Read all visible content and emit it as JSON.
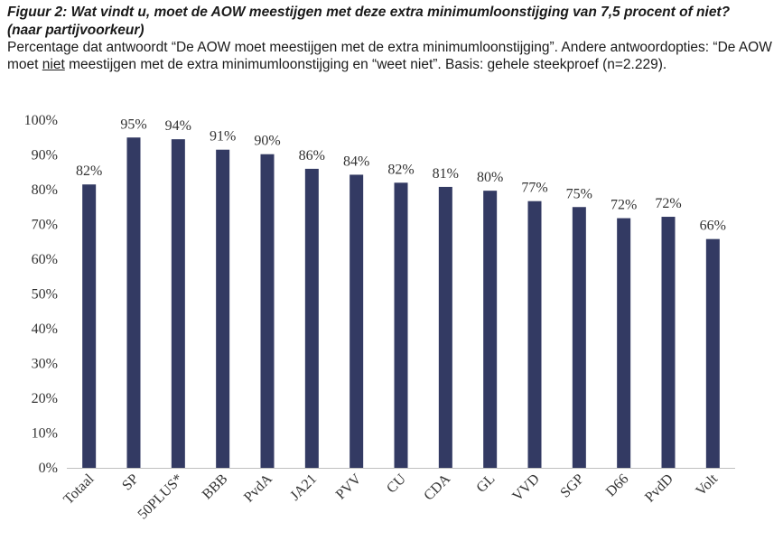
{
  "header": {
    "title_line1": "Figuur 2: Wat vindt u, moet de AOW meestijgen met deze extra minimumloonstijging van 7,5 procent of niet?",
    "title_line2": "(naar partijvoorkeur)",
    "desc_part1": "Percentage dat antwoordt “De AOW moet meestijgen met de extra minimumloonstijging”. Andere antwoordopties: “De AOW moet ",
    "desc_underlined": "niet",
    "desc_part2": " meestijgen met de extra minimumloonstijging en “weet niet”. Basis: gehele steekproef (n=2.229)."
  },
  "chart_data": {
    "type": "bar",
    "categories": [
      "Totaal",
      "SP",
      "50PLUS*",
      "BBB",
      "PvdA",
      "JA21",
      "PVV",
      "CU",
      "CDA",
      "GL",
      "VVD",
      "SGP",
      "D66",
      "PvdD",
      "Volt"
    ],
    "values": [
      82,
      95,
      94,
      91,
      90,
      86,
      84,
      82,
      81,
      80,
      77,
      75,
      72,
      72,
      66
    ],
    "bar_values": [
      81.5,
      95,
      94.5,
      91.5,
      90.2,
      86,
      84.3,
      82,
      80.8,
      79.7,
      76.7,
      75,
      71.8,
      72.2,
      65.8
    ],
    "data_labels": [
      "82%",
      "95%",
      "94%",
      "91%",
      "90%",
      "86%",
      "84%",
      "82%",
      "81%",
      "80%",
      "77%",
      "75%",
      "72%",
      "72%",
      "66%"
    ],
    "y_ticks": [
      "0%",
      "10%",
      "20%",
      "30%",
      "40%",
      "50%",
      "60%",
      "70%",
      "80%",
      "90%",
      "100%"
    ],
    "ylim": [
      0,
      100
    ],
    "bar_color": "#333a63",
    "grid": false,
    "legend": "none"
  }
}
